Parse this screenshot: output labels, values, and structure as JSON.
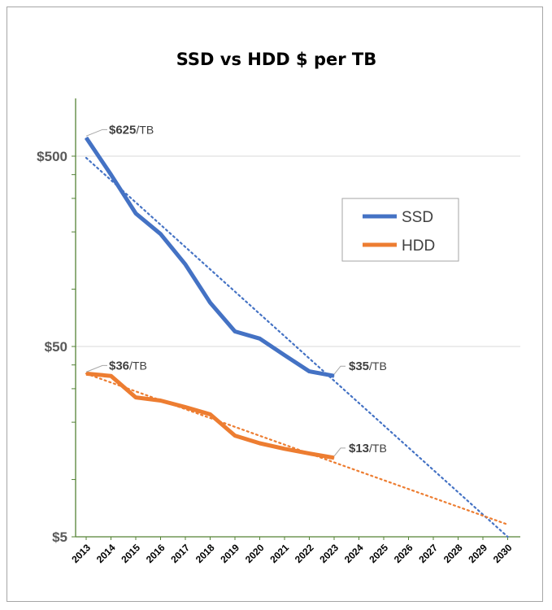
{
  "chart_data": {
    "type": "line",
    "title": "SSD vs HDD $ per TB",
    "y_scale": "log",
    "ylim": [
      5,
      900
    ],
    "yticks": [
      5,
      50,
      500
    ],
    "ytick_labels": [
      "$5",
      "$50",
      "$500"
    ],
    "x": [
      2013,
      2014,
      2015,
      2016,
      2017,
      2018,
      2019,
      2020,
      2021,
      2022,
      2023,
      2024,
      2025,
      2026,
      2027,
      2028,
      2029,
      2030
    ],
    "x_labels": [
      "2013",
      "2014",
      "2015",
      "2016",
      "2017",
      "2018",
      "2019",
      "2020",
      "2021",
      "2022",
      "2023",
      "2024",
      "2025",
      "2026",
      "2027",
      "2028",
      "2029",
      "2030"
    ],
    "grid": "horizontal",
    "legend_position": "right",
    "series": [
      {
        "name": "SSD",
        "color": "#4472c4",
        "x": [
          2013,
          2014,
          2015,
          2016,
          2017,
          2018,
          2019,
          2020,
          2021,
          2022,
          2023
        ],
        "values": [
          625,
          400,
          250,
          195,
          135,
          85,
          60,
          55,
          45,
          37,
          35
        ],
        "trend": {
          "style": "dotted",
          "start": [
            2013,
            490
          ],
          "end": [
            2030,
            5
          ]
        }
      },
      {
        "name": "HDD",
        "color": "#ed7d31",
        "x": [
          2013,
          2014,
          2015,
          2016,
          2017,
          2018,
          2019,
          2020,
          2021,
          2022,
          2023
        ],
        "values": [
          36,
          35,
          27,
          26,
          24,
          22,
          17,
          15.5,
          14.5,
          13.7,
          13
        ],
        "trend": {
          "style": "dotted",
          "start": [
            2013,
            36
          ],
          "end": [
            2030,
            5.8
          ]
        }
      }
    ],
    "annotations": [
      {
        "value": "$625",
        "unit": "/TB",
        "x": 2013,
        "y": 625,
        "series": "SSD"
      },
      {
        "value": "$35",
        "unit": "/TB",
        "x": 2023,
        "y": 35,
        "series": "SSD"
      },
      {
        "value": "$36",
        "unit": "/TB",
        "x": 2013,
        "y": 36,
        "series": "HDD"
      },
      {
        "value": "$13",
        "unit": "/TB",
        "x": 2023,
        "y": 13,
        "series": "HDD"
      }
    ]
  }
}
